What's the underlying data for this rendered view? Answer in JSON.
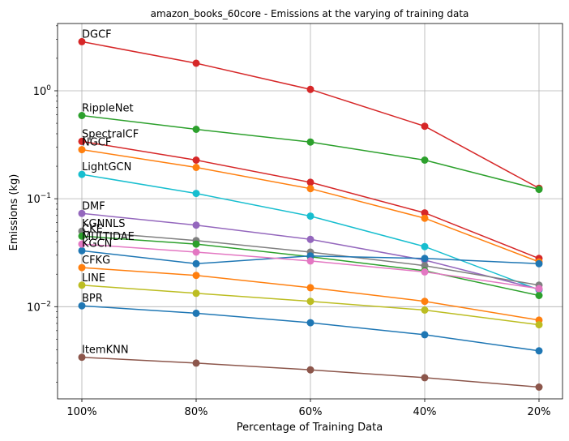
{
  "chart_data": {
    "type": "line",
    "title": "amazon_books_60core - Emissions at the varying of training data",
    "xlabel": "Percentage of Training Data",
    "ylabel": "Emissions (kg)",
    "y_scale": "log",
    "grid": true,
    "categories": [
      "100%",
      "80%",
      "60%",
      "40%",
      "20%"
    ],
    "y_ticks": [
      {
        "value": 0.01,
        "base": "10",
        "exp": "−2"
      },
      {
        "value": 0.1,
        "base": "10",
        "exp": "−1"
      },
      {
        "value": 1,
        "base": "10",
        "exp": "0"
      }
    ],
    "ylim": [
      0.0014,
      4.2
    ],
    "series": [
      {
        "name": "DGCF",
        "color": "#d62728",
        "values": [
          2.85,
          1.8,
          1.03,
          0.47,
          0.125
        ]
      },
      {
        "name": "RippleNet",
        "color": "#2ca02c",
        "values": [
          0.59,
          0.44,
          0.335,
          0.228,
          0.122
        ]
      },
      {
        "name": "SpectralCF",
        "color": "#d62728",
        "values": [
          0.34,
          0.228,
          0.142,
          0.074,
          0.028
        ]
      },
      {
        "name": "NGCF",
        "color": "#ff7f0e",
        "values": [
          0.285,
          0.195,
          0.124,
          0.066,
          0.026
        ]
      },
      {
        "name": "LightGCN",
        "color": "#17becf",
        "values": [
          0.168,
          0.112,
          0.069,
          0.036,
          0.0143
        ]
      },
      {
        "name": "DMF",
        "color": "#9467bd",
        "values": [
          0.073,
          0.057,
          0.042,
          0.027,
          0.0145
        ]
      },
      {
        "name": "KGNNLS",
        "color": "#7f7f7f",
        "values": [
          0.05,
          0.041,
          0.032,
          0.024,
          0.0158
        ]
      },
      {
        "name": "CKE",
        "color": "#2ca02c",
        "values": [
          0.045,
          0.038,
          0.029,
          0.0215,
          0.0127
        ]
      },
      {
        "name": "KGCN",
        "color": "#1f77b4",
        "values": [
          0.033,
          0.025,
          0.0295,
          0.028,
          0.025
        ]
      },
      {
        "name": "MultiDAE",
        "color": "#e377c2",
        "values": [
          0.038,
          0.032,
          0.0265,
          0.021,
          0.0147
        ]
      },
      {
        "name": "CFKG",
        "color": "#ff7f0e",
        "values": [
          0.023,
          0.0195,
          0.015,
          0.0112,
          0.0075
        ]
      },
      {
        "name": "LINE",
        "color": "#bcbd22",
        "values": [
          0.0158,
          0.0133,
          0.0112,
          0.0093,
          0.0068
        ]
      },
      {
        "name": "BPR",
        "color": "#1f77b4",
        "values": [
          0.0102,
          0.0087,
          0.0071,
          0.0055,
          0.0039
        ]
      },
      {
        "name": "ItemKNN",
        "color": "#8c564b",
        "values": [
          0.0034,
          0.003,
          0.0026,
          0.0022,
          0.0018
        ]
      }
    ],
    "labels": [
      {
        "text": "DGCF",
        "series": 0
      },
      {
        "text": "RippleNet",
        "series": 1
      },
      {
        "text": "SpectralCF",
        "series": 2
      },
      {
        "text": "NGCF",
        "series": 3
      },
      {
        "text": "LightGCN",
        "series": 4
      },
      {
        "text": "DMF",
        "series": 5
      },
      {
        "text": "KGNNLS",
        "series": 6
      },
      {
        "text": "CKE",
        "series": 7
      },
      {
        "text": "KGCN",
        "series": 8
      },
      {
        "text": "MULTIDAE",
        "series": 9
      },
      {
        "text": "CFKG",
        "series": 10
      },
      {
        "text": "LINE",
        "series": 11
      },
      {
        "text": "BPR",
        "series": 12
      },
      {
        "text": "ItemKNN",
        "series": 13
      }
    ]
  }
}
